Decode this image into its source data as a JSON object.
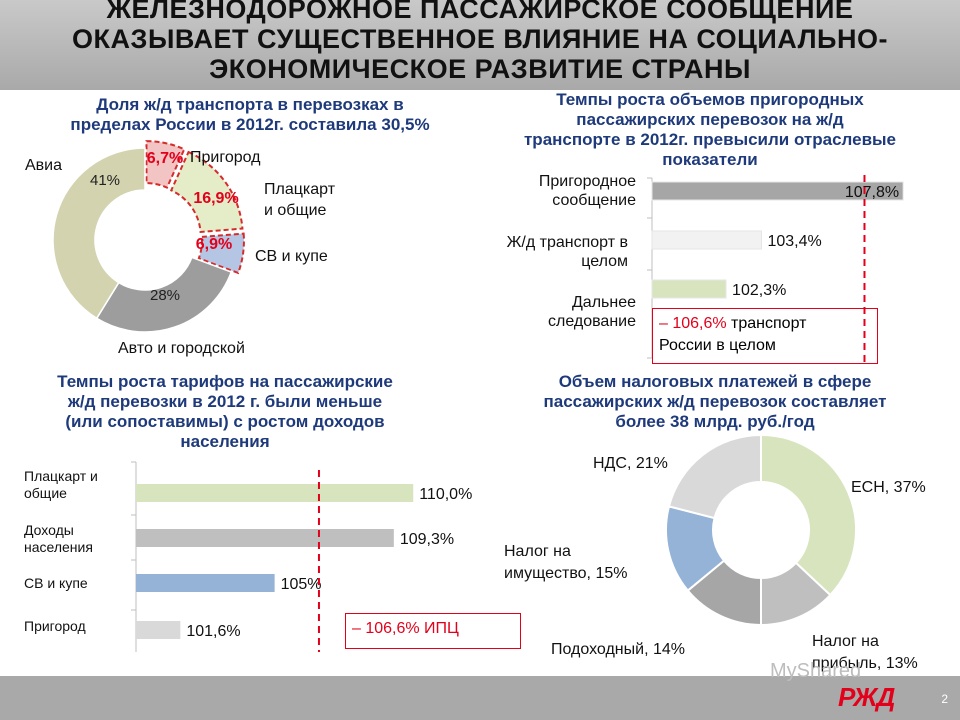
{
  "title": {
    "line1": "ЖЕЛЕЗНОДОРОЖНОЕ ПАССАЖИРСКОЕ СООБЩЕНИЕ",
    "line2": "ОКАЗЫВАЕТ СУЩЕСТВЕННОЕ ВЛИЯНИЕ НА СОЦИАЛЬНО-",
    "line3": "ЭКОНОМИЧЕСКОЕ РАЗВИТИЕ СТРАНЫ"
  },
  "chart_data": [
    {
      "type": "pie",
      "title_line1": "Доля ж/д транспорта в перевозках в",
      "title_line2": "пределах России в 2012г. составила 30,5%",
      "slices": [
        {
          "name": "Пригород",
          "value": 6.7,
          "label": "6,7%",
          "color": "#f2c4c4"
        },
        {
          "name": "Плацкарт и общие",
          "value": 16.9,
          "label": "16,9%",
          "color": "#e4ecc8"
        },
        {
          "name": "СВ и купе",
          "value": 6.9,
          "label": "6,9%",
          "color": "#b4c6e4"
        },
        {
          "name": "Авто и городской",
          "value": 28,
          "label": "28%",
          "color": "#9d9d9d"
        },
        {
          "name": "Авиа",
          "value": 41,
          "label": "41%",
          "color": "#d3d3b0"
        }
      ],
      "category_labels": {
        "avia": "Авиа",
        "prigorod": "Пригород",
        "platskart_1": "Плацкарт",
        "platskart_2": "и общие",
        "sv": "СВ и купе",
        "avto": "Авто и городской"
      }
    },
    {
      "type": "bar",
      "orientation": "horizontal",
      "title_line1": "Темпы роста объемов пригородных",
      "title_line2": "пассажирских  перевозок на ж/д",
      "title_line3": "транспорте в 2012г. превысили отраслевые",
      "title_line4": "показатели",
      "categories": [
        "Пригородное сообщение",
        "Ж/д транспорт в целом",
        "Дальнее следование"
      ],
      "category_lines": [
        [
          "Пригородное",
          "сообщение"
        ],
        [
          "Ж/д транспорт в",
          "целом"
        ],
        [
          "Дальнее",
          "следование"
        ]
      ],
      "values": [
        107.8,
        103.4,
        102.3
      ],
      "value_labels": [
        "107,8%",
        "103,4%",
        "102,3%"
      ],
      "colors": [
        "#a6a6a6",
        "#f2f2f2",
        "#d7e4bd"
      ],
      "axis_min": 100,
      "axis_max": 108.2,
      "reference": {
        "value": 106.6,
        "label_value": "– 106,6%",
        "label_rest": " транспорт",
        "label_line2": "России в целом"
      }
    },
    {
      "type": "bar",
      "orientation": "horizontal",
      "title_line1": "Темпы роста тарифов на пассажирские",
      "title_line2": "ж/д  перевозки в 2012 г. были меньше",
      "title_line3": "(или сопоставимы) с ростом доходов",
      "title_line4": "населения",
      "categories": [
        "Плацкарт и общие",
        "Доходы населения",
        "СВ и купе",
        "Пригород"
      ],
      "category_lines": [
        [
          "Плацкарт и",
          "общие"
        ],
        [
          "Доходы",
          "населения"
        ],
        [
          "СВ и купе"
        ],
        [
          "Пригород"
        ]
      ],
      "values": [
        110.0,
        109.3,
        105,
        101.6
      ],
      "value_labels": [
        "110,0%",
        "109,3%",
        "105%",
        "101,6%"
      ],
      "colors": [
        "#d7e4bd",
        "#bfbfbf",
        "#95b3d7",
        "#d9d9d9"
      ],
      "axis_min": 100,
      "axis_max": 110.1,
      "reference": {
        "value": 106.6,
        "label": "– 106,6% ИПЦ"
      }
    },
    {
      "type": "pie",
      "title_line1": "Объем налоговых платежей в сфере",
      "title_line2": "пассажирских ж/д перевозок составляет",
      "title_line3": "более 38 млрд. руб./год",
      "slices": [
        {
          "name": "ЕСН",
          "value": 37,
          "label": "ЕСН, 37%",
          "color": "#d7e4bd"
        },
        {
          "name": "Налог на прибыль",
          "value": 13,
          "label": "Налог на прибыль, 13%",
          "color": "#bfbfbf"
        },
        {
          "name": "Подоходный",
          "value": 14,
          "label": "Подоходный, 14%",
          "color": "#a6a6a6"
        },
        {
          "name": "Налог на имущество",
          "value": 15,
          "label": "Налог на имущество, 15%",
          "color": "#95b3d7"
        },
        {
          "name": "НДС",
          "value": 21,
          "label": "НДС, 21%",
          "color": "#d9d9d9"
        }
      ],
      "label_lines": {
        "esn": "ЕСН, 37%",
        "pribyl_1": "Налог на",
        "pribyl_2": "прибыль, 13%",
        "podohod": "Подоходный, 14%",
        "imush_1": "Налог на",
        "imush_2": "имущество, 15%",
        "nds": "НДС, 21%"
      }
    }
  ],
  "footer": {
    "page_number": "2",
    "watermark": "MyShared",
    "logo": "РЖД"
  }
}
